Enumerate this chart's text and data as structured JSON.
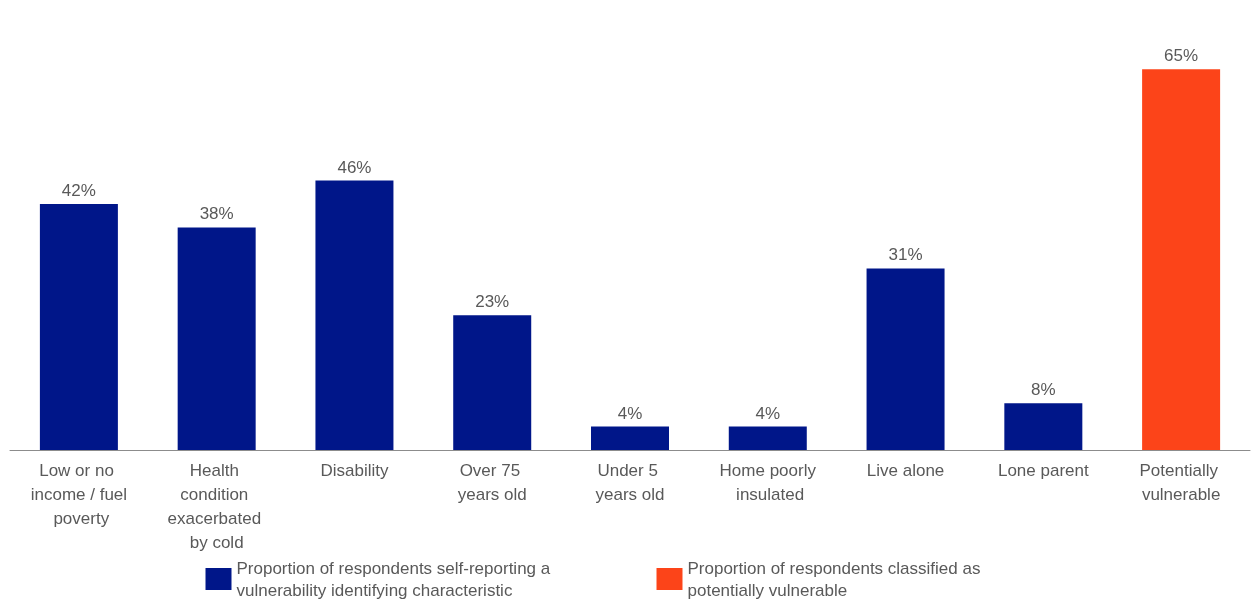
{
  "chart_data": {
    "type": "bar",
    "categories": [
      "Low or no income / fuel poverty",
      "Health condition exacerbated by cold",
      "Disability",
      "Over 75 years old",
      "Under 5 years old",
      "Home poorly insulated",
      "Live alone",
      "Lone parent",
      "Potentially vulnerable"
    ],
    "series": [
      {
        "name": "Proportion of respondents self-reporting a vulnerability identifying characteristic",
        "color": "#001689",
        "values": [
          42,
          38,
          46,
          23,
          4,
          4,
          31,
          8,
          null
        ],
        "value_labels": [
          "42%",
          "38%",
          "46%",
          "23%",
          "4%",
          "4%",
          "31%",
          "8%",
          null
        ]
      },
      {
        "name": "Proportion of respondents classified as potentially vulnerable",
        "color": "#fc4419",
        "values": [
          null,
          null,
          null,
          null,
          null,
          null,
          null,
          null,
          65
        ],
        "value_labels": [
          null,
          null,
          null,
          null,
          null,
          null,
          null,
          null,
          "65%"
        ]
      }
    ],
    "legend": "bottom"
  }
}
